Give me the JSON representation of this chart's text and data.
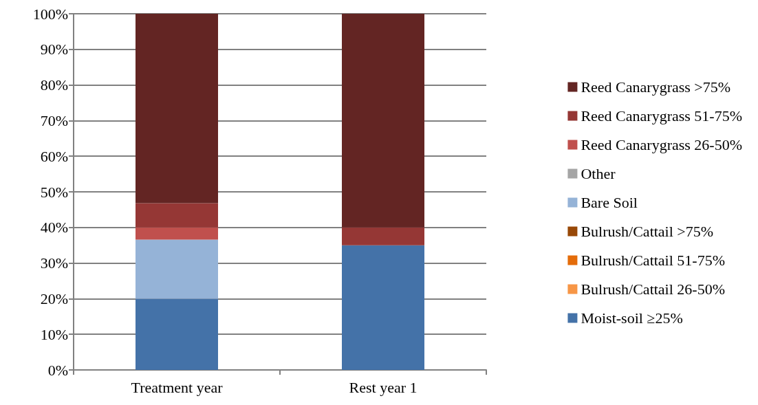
{
  "chart_data": {
    "type": "bar",
    "stacked": true,
    "categories": [
      "Treatment year",
      "Rest year 1"
    ],
    "series": [
      {
        "name": "Moist-soil ≥25%",
        "color": "#4472a8",
        "values": [
          20,
          35
        ]
      },
      {
        "name": "Bulrush/Cattail 26-50%",
        "color": "#f79646",
        "values": [
          0,
          0
        ]
      },
      {
        "name": "Bulrush/Cattail 51-75%",
        "color": "#e46c0a",
        "values": [
          0,
          0
        ]
      },
      {
        "name": "Bulrush/Cattail >75%",
        "color": "#984807",
        "values": [
          0,
          0
        ]
      },
      {
        "name": "Bare Soil",
        "color": "#95b3d7",
        "values": [
          16.6,
          0
        ]
      },
      {
        "name": "Other",
        "color": "#a5a5a5",
        "values": [
          0,
          0
        ]
      },
      {
        "name": "Reed Canarygrass 26-50%",
        "color": "#c0504d",
        "values": [
          3.4,
          0
        ]
      },
      {
        "name": "Reed Canarygrass 51-75%",
        "color": "#953735",
        "values": [
          6.8,
          5
        ]
      },
      {
        "name": "Reed Canarygrass >75%",
        "color": "#632523",
        "values": [
          53.2,
          60
        ]
      }
    ],
    "ylim": [
      0,
      100
    ],
    "yticks": [
      {
        "value": 0,
        "label": "0%"
      },
      {
        "value": 10,
        "label": "10%"
      },
      {
        "value": 20,
        "label": "20%"
      },
      {
        "value": 30,
        "label": "30%"
      },
      {
        "value": 40,
        "label": "40%"
      },
      {
        "value": 50,
        "label": "50%"
      },
      {
        "value": 60,
        "label": "60%"
      },
      {
        "value": 70,
        "label": "70%"
      },
      {
        "value": 80,
        "label": "80%"
      },
      {
        "value": 90,
        "label": "90%"
      },
      {
        "value": 100,
        "label": "100%"
      }
    ],
    "grid": "y",
    "legend": "right"
  }
}
